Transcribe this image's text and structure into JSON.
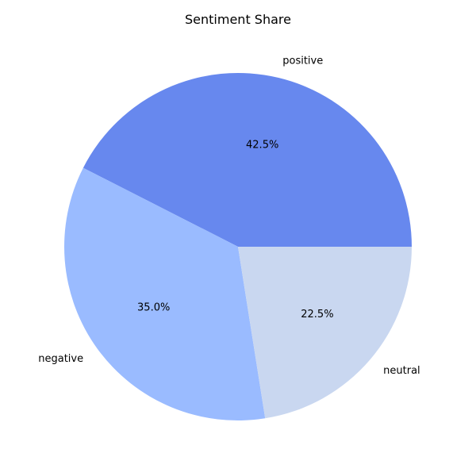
{
  "chart_data": {
    "type": "pie",
    "title": "Sentiment Share",
    "slices": [
      {
        "label": "positive",
        "value": 42.5,
        "pct_label": "42.5%",
        "color": "#6788ee"
      },
      {
        "label": "negative",
        "value": 35.0,
        "pct_label": "35.0%",
        "color": "#9abbff"
      },
      {
        "label": "neutral",
        "value": 22.5,
        "pct_label": "22.5%",
        "color": "#c9d7f0"
      }
    ],
    "start_angle_deg": 0,
    "direction": "counterclockwise"
  }
}
